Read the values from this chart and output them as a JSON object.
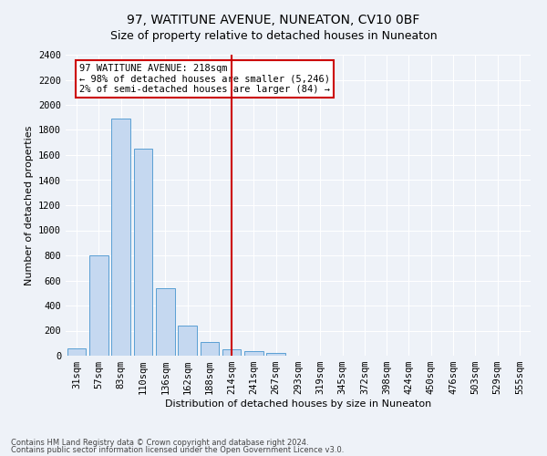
{
  "title": "97, WATITUNE AVENUE, NUNEATON, CV10 0BF",
  "subtitle": "Size of property relative to detached houses in Nuneaton",
  "xlabel": "Distribution of detached houses by size in Nuneaton",
  "ylabel": "Number of detached properties",
  "bar_labels": [
    "31sqm",
    "57sqm",
    "83sqm",
    "110sqm",
    "136sqm",
    "162sqm",
    "188sqm",
    "214sqm",
    "241sqm",
    "267sqm",
    "293sqm",
    "319sqm",
    "345sqm",
    "372sqm",
    "398sqm",
    "424sqm",
    "450sqm",
    "476sqm",
    "503sqm",
    "529sqm",
    "555sqm"
  ],
  "bar_values": [
    55,
    800,
    1890,
    1650,
    535,
    240,
    108,
    50,
    35,
    20,
    0,
    0,
    0,
    0,
    0,
    0,
    0,
    0,
    0,
    0,
    0
  ],
  "bar_color": "#c5d8f0",
  "bar_edge_color": "#5a9fd4",
  "ylim": [
    0,
    2400
  ],
  "yticks": [
    0,
    200,
    400,
    600,
    800,
    1000,
    1200,
    1400,
    1600,
    1800,
    2000,
    2200,
    2400
  ],
  "vline_x_index": 7,
  "vline_color": "#cc0000",
  "annotation_text": "97 WATITUNE AVENUE: 218sqm\n← 98% of detached houses are smaller (5,246)\n2% of semi-detached houses are larger (84) →",
  "annotation_box_color": "#ffffff",
  "annotation_box_edge": "#cc0000",
  "footer1": "Contains HM Land Registry data © Crown copyright and database right 2024.",
  "footer2": "Contains public sector information licensed under the Open Government Licence v3.0.",
  "bg_color": "#eef2f8",
  "grid_color": "#ffffff",
  "title_fontsize": 10,
  "subtitle_fontsize": 9,
  "axis_label_fontsize": 8,
  "tick_fontsize": 7.5
}
